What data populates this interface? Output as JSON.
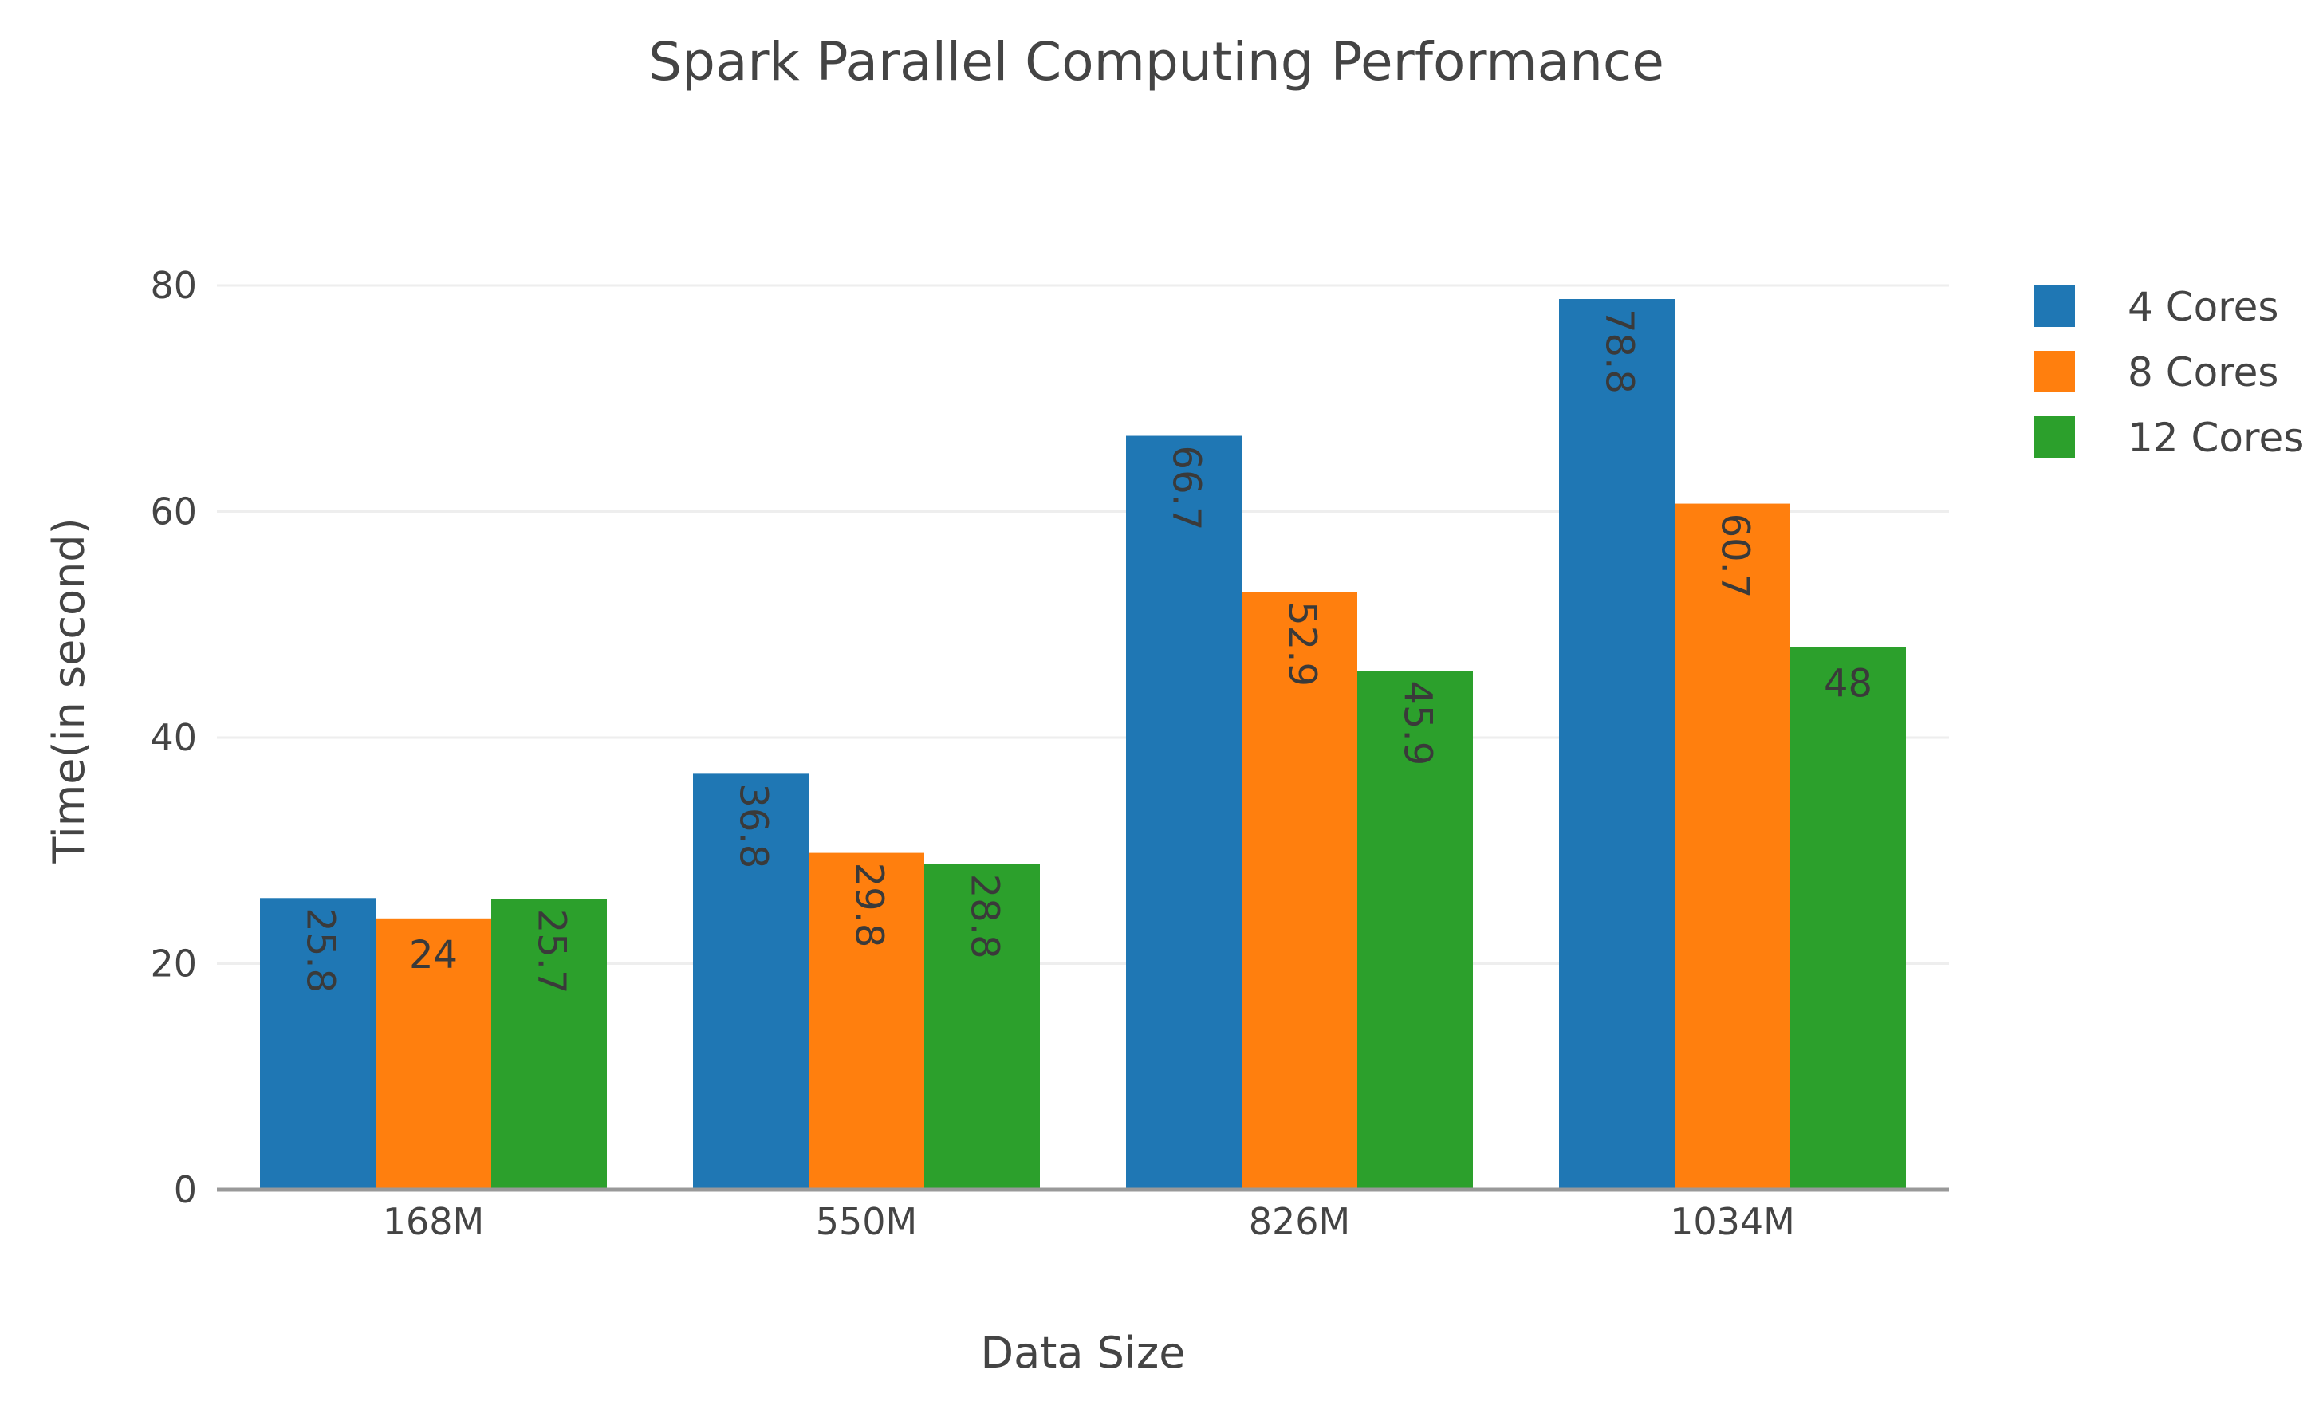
{
  "chart_data": {
    "type": "bar",
    "title": "Spark Parallel Computing Performance",
    "xlabel": "Data Size",
    "ylabel": "Time(in second)",
    "categories": [
      "168M",
      "550M",
      "826M",
      "1034M"
    ],
    "series": [
      {
        "name": "4 Cores",
        "color": "#1f77b4",
        "values": [
          25.8,
          36.8,
          66.7,
          78.8
        ],
        "labels": [
          "25.8",
          "36.8",
          "66.7",
          "78.8"
        ]
      },
      {
        "name": "8 Cores",
        "color": "#ff7f0e",
        "values": [
          24,
          29.8,
          52.9,
          60.7
        ],
        "labels": [
          "24",
          "29.8",
          "52.9",
          "60.7"
        ]
      },
      {
        "name": "12 Cores",
        "color": "#2ca02c",
        "values": [
          25.7,
          28.8,
          45.9,
          48
        ],
        "labels": [
          "25.7",
          "28.8",
          "45.9",
          "48"
        ]
      }
    ],
    "yticks": [
      0,
      20,
      40,
      60,
      80
    ],
    "ytick_labels": [
      "0",
      "20",
      "40",
      "60",
      "80"
    ],
    "ylim": [
      0,
      80
    ],
    "grid": true,
    "legend": "top-right"
  }
}
